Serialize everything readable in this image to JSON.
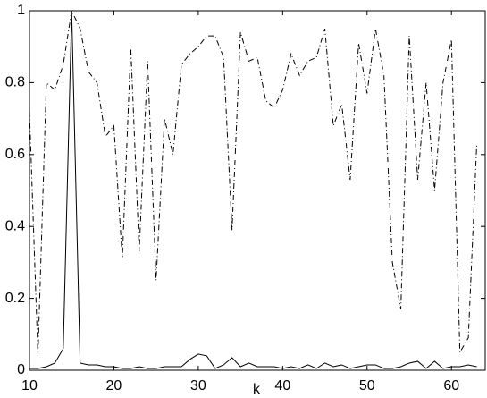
{
  "chart_data": {
    "type": "line",
    "xlabel": "k",
    "x": [
      10,
      11,
      12,
      13,
      14,
      15,
      16,
      17,
      18,
      19,
      20,
      21,
      22,
      23,
      24,
      25,
      26,
      27,
      28,
      29,
      30,
      31,
      32,
      33,
      34,
      35,
      36,
      37,
      38,
      39,
      40,
      41,
      42,
      43,
      44,
      45,
      46,
      47,
      48,
      49,
      50,
      51,
      52,
      53,
      54,
      55,
      56,
      57,
      58,
      59,
      60,
      61,
      62,
      63
    ],
    "series": [
      {
        "color": "#000000",
        "style": "solid",
        "values": [
          0.005,
          0.005,
          0.01,
          0.02,
          0.06,
          1.0,
          0.02,
          0.015,
          0.015,
          0.01,
          0.01,
          0.005,
          0.005,
          0.01,
          0.005,
          0.005,
          0.01,
          0.01,
          0.01,
          0.03,
          0.045,
          0.04,
          0.005,
          0.015,
          0.035,
          0.01,
          0.02,
          0.01,
          0.01,
          0.01,
          0.005,
          0.01,
          0.005,
          0.015,
          0.005,
          0.02,
          0.01,
          0.015,
          0.005,
          0.01,
          0.015,
          0.015,
          0.005,
          0.005,
          0.01,
          0.02,
          0.025,
          0.005,
          0.025,
          0.005,
          0.01,
          0.01,
          0.015,
          0.01
        ]
      },
      {
        "color": "#000000",
        "style": "dashdot",
        "values": [
          0.72,
          0.04,
          0.8,
          0.78,
          0.85,
          1.0,
          0.95,
          0.83,
          0.8,
          0.65,
          0.68,
          0.31,
          0.9,
          0.33,
          0.86,
          0.25,
          0.7,
          0.6,
          0.85,
          0.88,
          0.9,
          0.93,
          0.93,
          0.87,
          0.39,
          0.94,
          0.86,
          0.87,
          0.75,
          0.73,
          0.78,
          0.88,
          0.82,
          0.86,
          0.87,
          0.95,
          0.68,
          0.74,
          0.53,
          0.91,
          0.77,
          0.95,
          0.82,
          0.3,
          0.17,
          0.93,
          0.53,
          0.8,
          0.5,
          0.8,
          0.92,
          0.05,
          0.09,
          0.63
        ]
      }
    ],
    "xlim": [
      10,
      64
    ],
    "ylim": [
      0,
      1
    ],
    "xticks": [
      10,
      20,
      30,
      40,
      50,
      60
    ],
    "yticks": [
      0,
      0.2,
      0.4,
      0.6,
      0.8,
      1
    ]
  }
}
